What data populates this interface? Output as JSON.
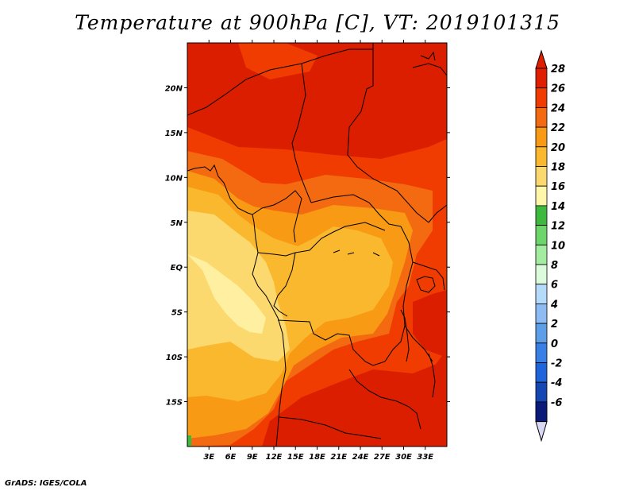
{
  "title": "Temperature at 900hPa [C], VT: 2019101315",
  "footer": "GrADS: IGES/COLA",
  "map": {
    "lon_range": [
      0,
      36
    ],
    "lat_range": [
      -20,
      25
    ],
    "lat_ticks": [
      {
        "value": 20,
        "label": "20N"
      },
      {
        "value": 15,
        "label": "15N"
      },
      {
        "value": 10,
        "label": "10N"
      },
      {
        "value": 5,
        "label": "5N"
      },
      {
        "value": 0,
        "label": "EQ"
      },
      {
        "value": -5,
        "label": "5S"
      },
      {
        "value": -10,
        "label": "10S"
      },
      {
        "value": -15,
        "label": "15S"
      }
    ],
    "lon_ticks": [
      {
        "value": 3,
        "label": "3E"
      },
      {
        "value": 6,
        "label": "6E"
      },
      {
        "value": 9,
        "label": "9E"
      },
      {
        "value": 12,
        "label": "12E"
      },
      {
        "value": 15,
        "label": "15E"
      },
      {
        "value": 18,
        "label": "18E"
      },
      {
        "value": 21,
        "label": "21E"
      },
      {
        "value": 24,
        "label": "24E"
      },
      {
        "value": 27,
        "label": "27E"
      },
      {
        "value": 30,
        "label": "30E"
      },
      {
        "value": 33,
        "label": "33E"
      }
    ]
  },
  "colorbar": {
    "levels": [
      {
        "label": "28",
        "color": "#e01f00"
      },
      {
        "label": "26",
        "color": "#f03c00"
      },
      {
        "label": "24",
        "color": "#f46a10"
      },
      {
        "label": "22",
        "color": "#f89a14"
      },
      {
        "label": "20",
        "color": "#fab82e"
      },
      {
        "label": "18",
        "color": "#fcd96e"
      },
      {
        "label": "16",
        "color": "#fef6a8"
      },
      {
        "label": "14",
        "color": "#3dba3d"
      },
      {
        "label": "12",
        "color": "#6dd66b"
      },
      {
        "label": "10",
        "color": "#a3eda0"
      },
      {
        "label": "8",
        "color": "#dcfadc"
      },
      {
        "label": "6",
        "color": "#b4dcfa"
      },
      {
        "label": "4",
        "color": "#8cbcf3"
      },
      {
        "label": "2",
        "color": "#5c9ee8"
      },
      {
        "label": "0",
        "color": "#3880e6"
      },
      {
        "label": "-2",
        "color": "#1e64da"
      },
      {
        "label": "-4",
        "color": "#1446b4"
      },
      {
        "label": "-6",
        "color": "#0d2c92"
      }
    ],
    "top_arrow_color": "#e01f00",
    "bottom_arrow_color": "#d8d8f4",
    "extra_bottom_color": "#0a1a78"
  },
  "colors": {
    "hot": "#dc1e00",
    "very_warm": "#f03c00",
    "warm": "#f46a10",
    "mild": "#f89a14",
    "cool": "#fab82e",
    "coolest": "#fcd96e",
    "pale": "#fef0a0",
    "coast_green": "#3dba3d"
  }
}
